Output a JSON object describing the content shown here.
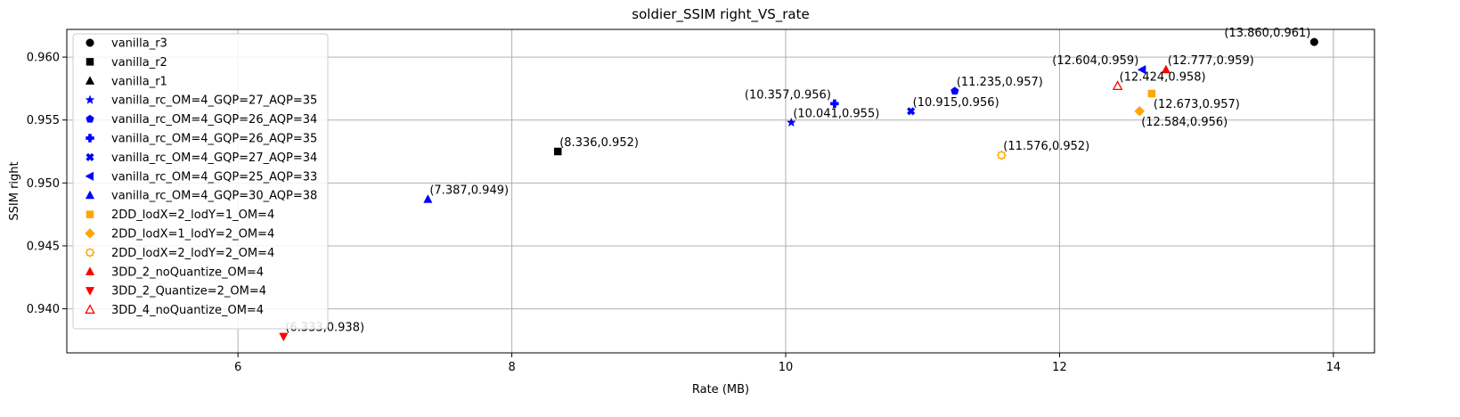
{
  "chart_data": {
    "type": "scatter",
    "title": "soldier_SSIM right_VS_rate",
    "xlabel": "Rate (MB)",
    "ylabel": "SSIM right",
    "xlim": [
      4.75,
      14.3
    ],
    "ylim": [
      0.9365,
      0.9622
    ],
    "xticks": [
      6,
      8,
      10,
      12,
      14
    ],
    "yticks": [
      0.94,
      0.945,
      0.95,
      0.955,
      0.96
    ],
    "ytick_labels": [
      "0.940",
      "0.945",
      "0.950",
      "0.955",
      "0.960"
    ],
    "grid": true,
    "legend_position": "upper-left",
    "series": [
      {
        "name": "vanilla_r3",
        "marker": "circle",
        "color": "#000000",
        "filled": true,
        "points": [
          {
            "x": 13.86,
            "y": 0.9612,
            "label": "(13.860,0.961)",
            "label_pos": "upper-left"
          }
        ]
      },
      {
        "name": "vanilla_r2",
        "marker": "square",
        "color": "#000000",
        "filled": true,
        "points": [
          {
            "x": 8.336,
            "y": 0.9525,
            "label": "(8.336,0.952)",
            "label_pos": "upper-right"
          }
        ]
      },
      {
        "name": "vanilla_r1",
        "marker": "triangle-up",
        "color": "#000000",
        "filled": true,
        "points": []
      },
      {
        "name": "vanilla_rc_OM=4_GQP=27_AQP=35",
        "marker": "star",
        "color": "#0000ff",
        "filled": true,
        "points": [
          {
            "x": 10.041,
            "y": 0.9548,
            "label": "(10.041,0.955)",
            "label_pos": "upper-right"
          }
        ]
      },
      {
        "name": "vanilla_rc_OM=4_GQP=26_AQP=34",
        "marker": "pentagon",
        "color": "#0000ff",
        "filled": true,
        "points": [
          {
            "x": 11.235,
            "y": 0.9573,
            "label": "(11.235,0.957)",
            "label_pos": "upper-right"
          }
        ]
      },
      {
        "name": "vanilla_rc_OM=4_GQP=26_AQP=35",
        "marker": "plus",
        "color": "#0000ff",
        "filled": true,
        "points": [
          {
            "x": 10.357,
            "y": 0.9563,
            "label": "(10.357,0.956)",
            "label_pos": "upper-left"
          }
        ]
      },
      {
        "name": "vanilla_rc_OM=4_GQP=27_AQP=34",
        "marker": "x",
        "color": "#0000ff",
        "filled": true,
        "points": [
          {
            "x": 10.915,
            "y": 0.9557,
            "label": "(10.915,0.956)",
            "label_pos": "upper-right"
          }
        ]
      },
      {
        "name": "vanilla_rc_OM=4_GQP=25_AQP=33",
        "marker": "triangle-left",
        "color": "#0000ff",
        "filled": true,
        "points": [
          {
            "x": 12.604,
            "y": 0.959,
            "label": "(12.604,0.959)",
            "label_pos": "upper-left"
          }
        ]
      },
      {
        "name": "vanilla_rc_OM=4_GQP=30_AQP=38",
        "marker": "triangle-up",
        "color": "#0000ff",
        "filled": true,
        "points": [
          {
            "x": 7.387,
            "y": 0.9487,
            "label": "(7.387,0.949)",
            "label_pos": "upper-right"
          }
        ]
      },
      {
        "name": "2DD_lodX=2_lodY=1_OM=4",
        "marker": "square",
        "color": "#ffa500",
        "filled": true,
        "points": [
          {
            "x": 12.673,
            "y": 0.9571,
            "label": "(12.673,0.957)",
            "label_pos": "lower-right"
          }
        ]
      },
      {
        "name": "2DD_lodX=1_lodY=2_OM=4",
        "marker": "diamond",
        "color": "#ffa500",
        "filled": true,
        "points": [
          {
            "x": 12.584,
            "y": 0.9557,
            "label": "(12.584,0.956)",
            "label_pos": "lower-right"
          }
        ]
      },
      {
        "name": "2DD_lodX=2_lodY=2_OM=4",
        "marker": "gear",
        "color": "#ffa500",
        "filled": false,
        "points": [
          {
            "x": 11.576,
            "y": 0.9522,
            "label": "(11.576,0.952)",
            "label_pos": "upper-right"
          }
        ]
      },
      {
        "name": "3DD_2_noQuantize_OM=4",
        "marker": "triangle-up",
        "color": "#ff0000",
        "filled": true,
        "points": [
          {
            "x": 12.777,
            "y": 0.959,
            "label": "(12.777,0.959)",
            "label_pos": "upper-right"
          }
        ]
      },
      {
        "name": "3DD_2_Quantize=2_OM=4",
        "marker": "triangle-down",
        "color": "#ff0000",
        "filled": true,
        "points": [
          {
            "x": 6.333,
            "y": 0.9378,
            "label": "(6.333,0.938)",
            "label_pos": "upper-right"
          }
        ]
      },
      {
        "name": "3DD_4_noQuantize_OM=4",
        "marker": "triangle-up",
        "color": "#ff0000",
        "filled": false,
        "points": [
          {
            "x": 12.424,
            "y": 0.9577,
            "label": "(12.424,0.958)",
            "label_pos": "upper-right"
          }
        ]
      }
    ]
  }
}
